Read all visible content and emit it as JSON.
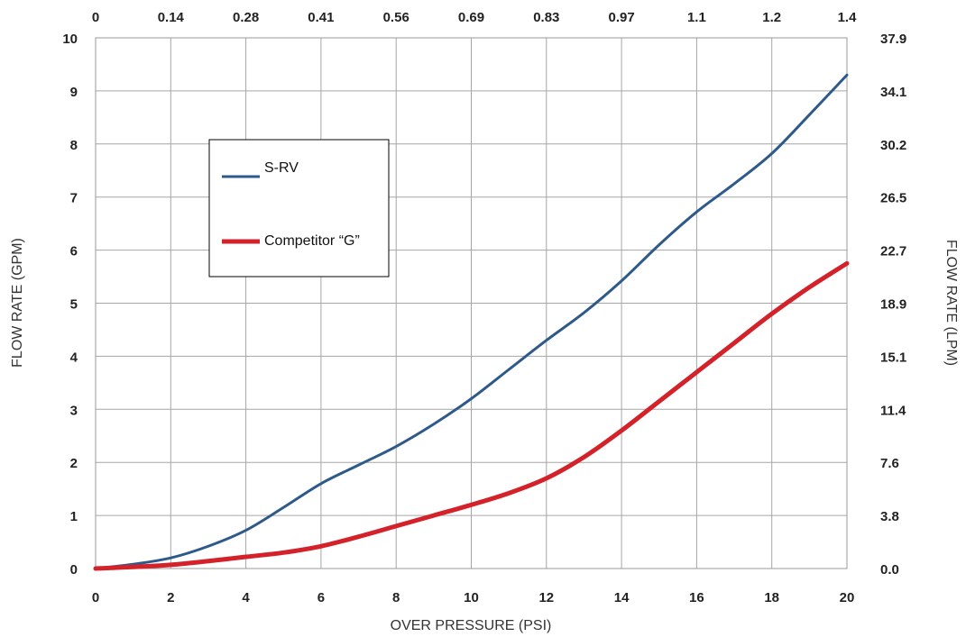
{
  "chart_data": {
    "type": "line",
    "xlabel": "OVER PRESSURE (PSI)",
    "ylabel": "FLOW RATE (GPM)",
    "y2label": "FLOW RATE (LPM)",
    "xlim": [
      0,
      20
    ],
    "ylim": [
      0,
      10
    ],
    "grid": true,
    "legend_position": "upper-left",
    "x_ticks": [
      "0",
      "2",
      "4",
      "6",
      "8",
      "10",
      "12",
      "14",
      "16",
      "18",
      "20"
    ],
    "y_ticks": [
      "0",
      "1",
      "2",
      "3",
      "4",
      "5",
      "6",
      "7",
      "8",
      "9",
      "10"
    ],
    "top_ticks": [
      "0",
      "0.14",
      "0.28",
      "0.41",
      "0.56",
      "0.69",
      "0.83",
      "0.97",
      "1.1",
      "1.2",
      "1.4"
    ],
    "right_ticks": [
      "0.0",
      "3.8",
      "7.6",
      "11.4",
      "15.1",
      "18.9",
      "22.7",
      "26.5",
      "30.2",
      "34.1",
      "37.9"
    ],
    "x": [
      0,
      1,
      2,
      3,
      4,
      5,
      6,
      7,
      8,
      9,
      10,
      11,
      12,
      13,
      14,
      15,
      16,
      17,
      18,
      19,
      20
    ],
    "series": [
      {
        "name": "S-RV",
        "color": "#2e5a8a",
        "values": [
          0,
          0.08,
          0.2,
          0.42,
          0.72,
          1.15,
          1.6,
          1.95,
          2.3,
          2.72,
          3.2,
          3.75,
          4.3,
          4.82,
          5.42,
          6.1,
          6.72,
          7.25,
          7.82,
          8.55,
          9.3
        ]
      },
      {
        "name": "Competitor “G”",
        "color": "#d3222a",
        "values": [
          0,
          0.03,
          0.07,
          0.14,
          0.22,
          0.3,
          0.42,
          0.6,
          0.8,
          1.0,
          1.2,
          1.42,
          1.7,
          2.1,
          2.6,
          3.15,
          3.7,
          4.25,
          4.8,
          5.3,
          5.75
        ]
      }
    ]
  }
}
